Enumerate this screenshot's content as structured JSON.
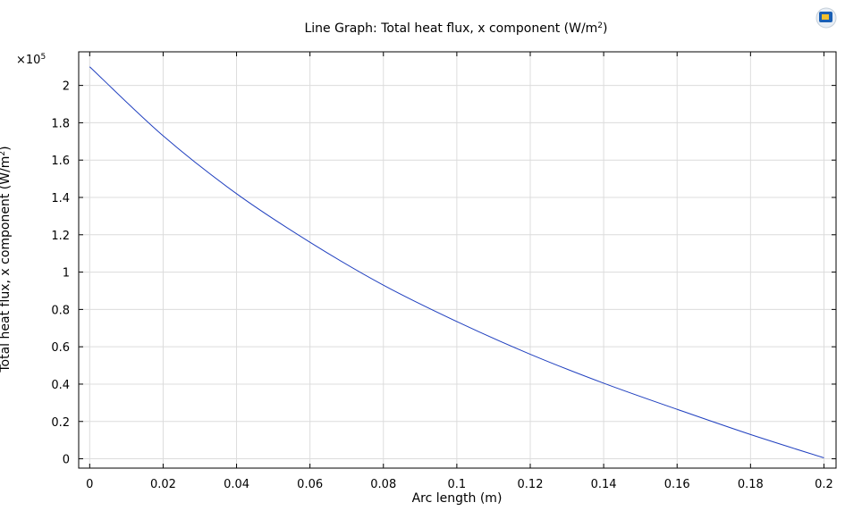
{
  "chart_data": {
    "type": "line",
    "title": "Line Graph: Total heat flux, x component (W/m",
    "title_sup": "2",
    "title_tail": ")",
    "xlabel": "Arc length (m)",
    "ylabel": "Total heat flux, x component (W/m",
    "ylabel_sup": "2",
    "ylabel_tail": ")",
    "y_multiplier": "×10",
    "y_multiplier_exp": "5",
    "xlim": [
      -0.003,
      0.2033
    ],
    "ylim": [
      -0.05,
      2.18
    ],
    "xticks": [
      0,
      0.02,
      0.04,
      0.06,
      0.08,
      0.1,
      0.12,
      0.14,
      0.16,
      0.18,
      0.2
    ],
    "xtick_labels": [
      "0",
      "0.02",
      "0.04",
      "0.06",
      "0.08",
      "0.1",
      "0.12",
      "0.14",
      "0.16",
      "0.18",
      "0.2"
    ],
    "yticks": [
      0,
      0.2,
      0.4,
      0.6,
      0.8,
      1,
      1.2,
      1.4,
      1.6,
      1.8,
      2
    ],
    "ytick_labels": [
      "0",
      "0.2",
      "0.4",
      "0.6",
      "0.8",
      "1",
      "1.2",
      "1.4",
      "1.6",
      "1.8",
      "2"
    ],
    "grid": true,
    "line_color": "#1f3fbf",
    "series": [
      {
        "x": [
          0,
          0.02,
          0.04,
          0.06,
          0.08,
          0.1,
          0.12,
          0.14,
          0.16,
          0.18,
          0.2
        ],
        "y": [
          2.1,
          1.73,
          1.42,
          1.16,
          0.93,
          0.735,
          0.56,
          0.405,
          0.265,
          0.13,
          0.005
        ]
      }
    ]
  }
}
